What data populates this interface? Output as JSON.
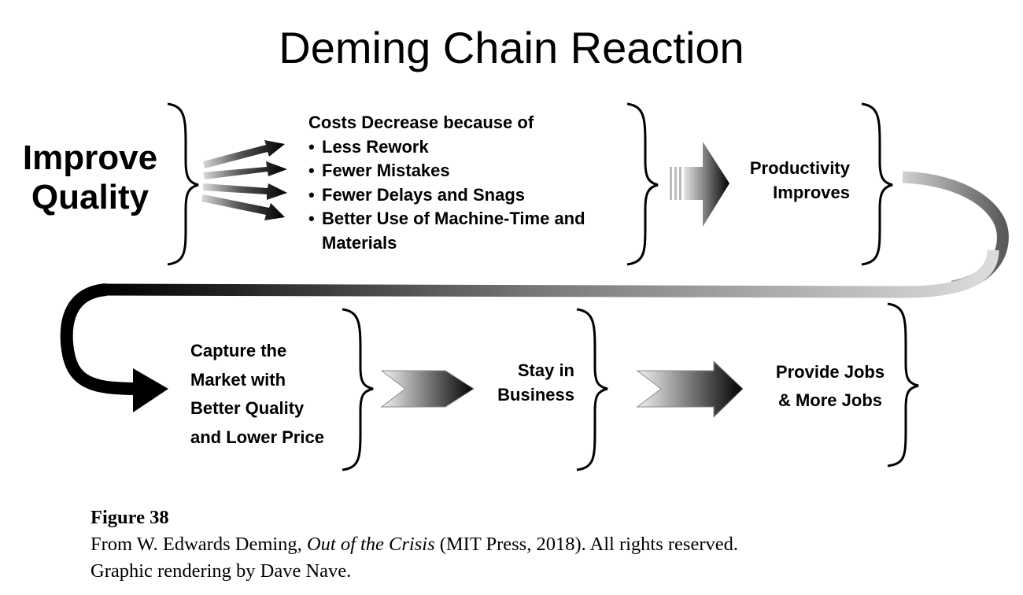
{
  "title": "Deming Chain Reaction",
  "start": {
    "line1": "Improve",
    "line2": "Quality"
  },
  "costs": {
    "heading": "Costs Decrease because of",
    "bullet": "•",
    "items": [
      "Less Rework",
      "Fewer Mistakes",
      "Fewer Delays and Snags",
      "Better Use of Machine-Time and",
      "Materials"
    ]
  },
  "productivity": {
    "line1": "Productivity",
    "line2": "Improves"
  },
  "capture": {
    "line1": "Capture the",
    "line2": "Market with",
    "line3": "Better Quality",
    "line4": "and Lower Price"
  },
  "stay": {
    "line1": "Stay in",
    "line2": "Business"
  },
  "jobs": {
    "line1": "Provide Jobs",
    "line2": "& More Jobs"
  },
  "caption": {
    "figure": "Figure 38",
    "source_pre": "From W. Edwards Deming, ",
    "source_title": "Out of the Crisis",
    "source_post": " (MIT Press, 2018). All rights reserved.",
    "line2": "Graphic rendering by Dave Nave."
  }
}
